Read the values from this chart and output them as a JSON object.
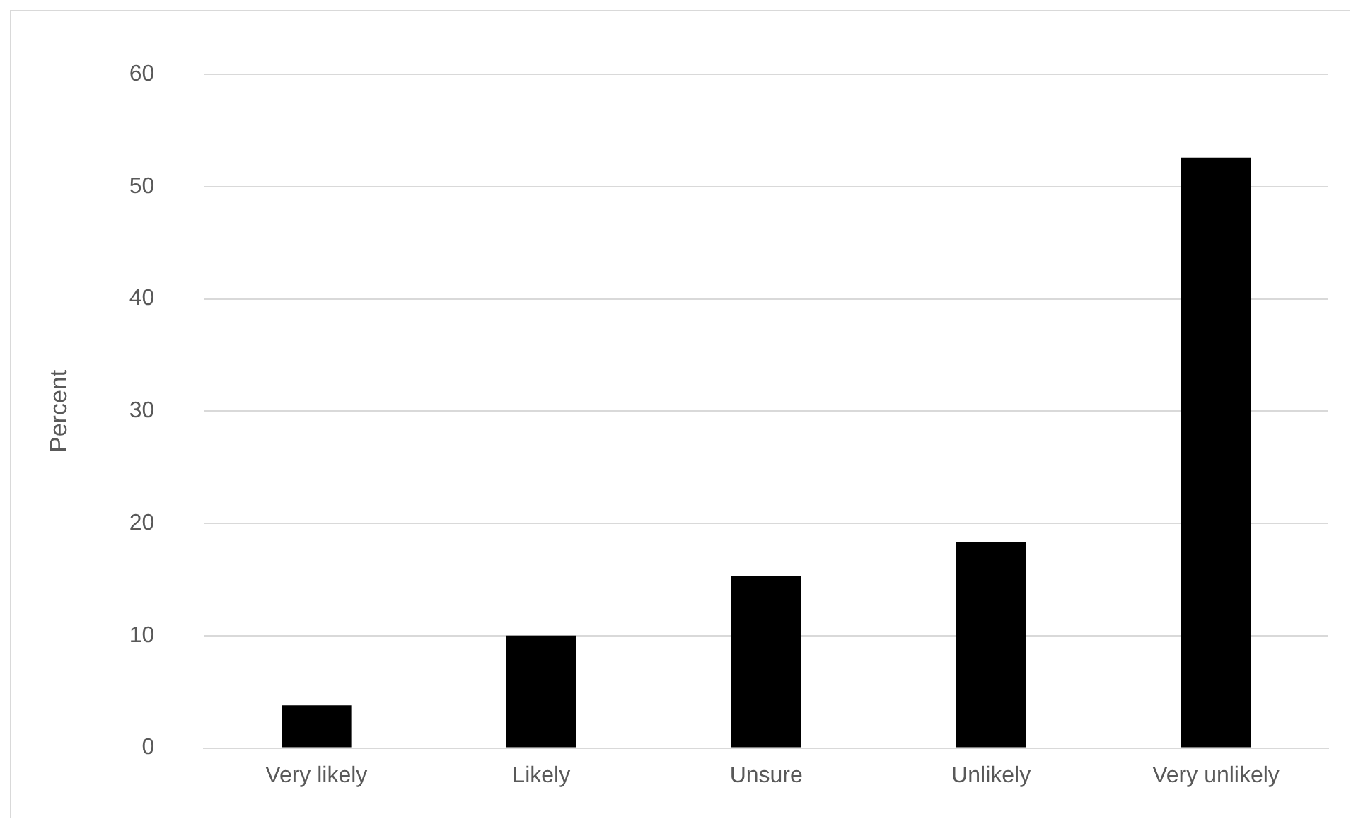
{
  "chart_data": {
    "type": "bar",
    "ylabel": "Percent",
    "categories": [
      "Very likely",
      "Likely",
      "Unsure",
      "Unlikely",
      "Very unlikely"
    ],
    "values": [
      3.8,
      10.0,
      15.3,
      18.3,
      52.6
    ],
    "color": "#000000",
    "ylim": [
      0,
      60
    ],
    "yticks": [
      0,
      10,
      20,
      30,
      40,
      50,
      60
    ],
    "grid": "y",
    "legend": false
  }
}
